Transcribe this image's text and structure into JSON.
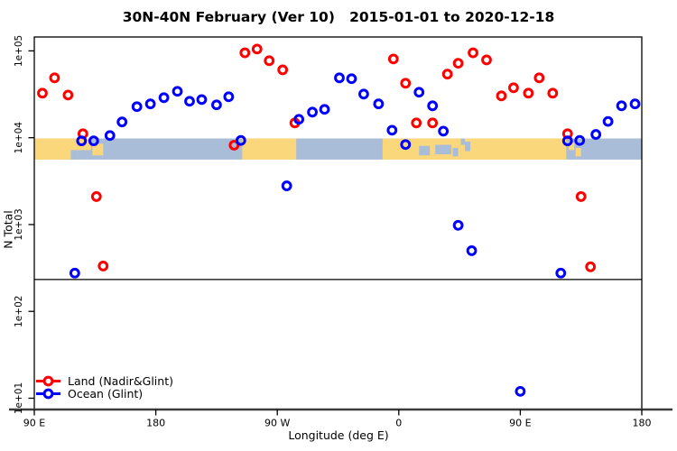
{
  "chart_data": {
    "type": "scatter",
    "title": "30N-40N February (Ver 10)   2015-01-01 to 2020-12-18",
    "xlabel": "Longitude (deg E)",
    "ylabel": "N Total",
    "x_axis": {
      "domain": [
        90,
        540
      ],
      "tick_positions": [
        90,
        180,
        270,
        360,
        450,
        540
      ],
      "tick_labels": [
        "90 E",
        "180",
        "90 W",
        "0",
        "90 E",
        "180"
      ]
    },
    "y_axis": {
      "scale": "log10",
      "log_domain": [
        0.87,
        5.16
      ],
      "tick_values": [
        10,
        100,
        1000,
        10000,
        100000
      ],
      "tick_labels": [
        "1e+01",
        "1e+02",
        "1e+03",
        "1e+04",
        "1e+05"
      ]
    },
    "hline_value": 233,
    "map_band": {
      "value_top": 9800,
      "value_bottom": 5600,
      "land_color": "#FBD77B",
      "ocean_color": "#A9BDD8",
      "land_segments": [
        {
          "lon_start": 90,
          "lon_end": 122,
          "frac_top": 0,
          "frac_bottom": 1
        },
        {
          "lon_start": 122,
          "lon_end": 132,
          "frac_top": 0,
          "frac_bottom": 0.55
        },
        {
          "lon_start": 133,
          "lon_end": 141,
          "frac_top": 0.25,
          "frac_bottom": 0.8
        },
        {
          "lon_start": 244,
          "lon_end": 284,
          "frac_top": 0,
          "frac_bottom": 1
        },
        {
          "lon_start": 348,
          "lon_end": 406,
          "frac_top": 0,
          "frac_bottom": 1
        },
        {
          "lon_start": 406,
          "lon_end": 484,
          "frac_top": 0,
          "frac_bottom": 1
        },
        {
          "lon_start": 486,
          "lon_end": 490,
          "frac_top": 0.2,
          "frac_bottom": 0.55
        },
        {
          "lon_start": 491,
          "lon_end": 495,
          "frac_top": 0.45,
          "frac_bottom": 0.85
        }
      ],
      "ocean_patches": [
        {
          "lon_start": 117,
          "lon_end": 122,
          "frac_top": 0.55,
          "frac_bottom": 1
        },
        {
          "lon_start": 375,
          "lon_end": 383,
          "frac_top": 0.35,
          "frac_bottom": 0.8
        },
        {
          "lon_start": 387,
          "lon_end": 399,
          "frac_top": 0.3,
          "frac_bottom": 0.75
        },
        {
          "lon_start": 400,
          "lon_end": 404,
          "frac_top": 0.45,
          "frac_bottom": 0.85
        },
        {
          "lon_start": 406,
          "lon_end": 409,
          "frac_top": 0,
          "frac_bottom": 0.3
        },
        {
          "lon_start": 409,
          "lon_end": 413,
          "frac_top": 0.15,
          "frac_bottom": 0.6
        }
      ]
    },
    "series": [
      {
        "name": "Land (Nadir&Glint)",
        "color": "#FF0000",
        "points": [
          [
            96,
            32600
          ],
          [
            105,
            48900
          ],
          [
            115,
            31000
          ],
          [
            126,
            11100
          ],
          [
            136,
            2100
          ],
          [
            141,
            333
          ],
          [
            238,
            8200
          ],
          [
            246,
            95000
          ],
          [
            255,
            105000
          ],
          [
            264,
            77000
          ],
          [
            274,
            60500
          ],
          [
            283,
            14800
          ],
          [
            356,
            80700
          ],
          [
            365,
            42400
          ],
          [
            373,
            14800
          ],
          [
            385,
            14800
          ],
          [
            396,
            54000
          ],
          [
            404,
            72000
          ],
          [
            415,
            95000
          ],
          [
            425,
            78700
          ],
          [
            436,
            30300
          ],
          [
            445,
            37600
          ],
          [
            456,
            32600
          ],
          [
            464,
            48900
          ],
          [
            474,
            32600
          ],
          [
            485,
            11100
          ],
          [
            495,
            2100
          ],
          [
            502,
            326
          ]
        ]
      },
      {
        "name": "Ocean (Glint)",
        "color": "#0000FF",
        "points": [
          [
            120,
            276
          ],
          [
            125,
            9200
          ],
          [
            134,
            9200
          ],
          [
            146,
            10600
          ],
          [
            155,
            15200
          ],
          [
            166,
            22800
          ],
          [
            176,
            24500
          ],
          [
            186,
            28900
          ],
          [
            196,
            34200
          ],
          [
            205,
            26300
          ],
          [
            214,
            27500
          ],
          [
            225,
            23900
          ],
          [
            234,
            29600
          ],
          [
            243,
            9300
          ],
          [
            277,
            2790
          ],
          [
            286,
            16300
          ],
          [
            296,
            19700
          ],
          [
            305,
            21200
          ],
          [
            316,
            48900
          ],
          [
            325,
            47800
          ],
          [
            334,
            31800
          ],
          [
            345,
            24500
          ],
          [
            355,
            12200
          ],
          [
            365,
            8350
          ],
          [
            375,
            33400
          ],
          [
            385,
            23300
          ],
          [
            393,
            11900
          ],
          [
            404,
            980
          ],
          [
            414,
            500
          ],
          [
            450,
            12
          ],
          [
            480,
            276
          ],
          [
            485,
            9200
          ],
          [
            494,
            9300
          ],
          [
            506,
            10900
          ],
          [
            515,
            15400
          ],
          [
            525,
            23300
          ],
          [
            535,
            24500
          ]
        ]
      }
    ],
    "legend": {
      "position": "bottom-left",
      "items": [
        "Land (Nadir&Glint)",
        "Ocean (Glint)"
      ]
    },
    "colors": {
      "axis": "#000000",
      "hline": "#3c3c3c",
      "background": "#ffffff"
    }
  }
}
